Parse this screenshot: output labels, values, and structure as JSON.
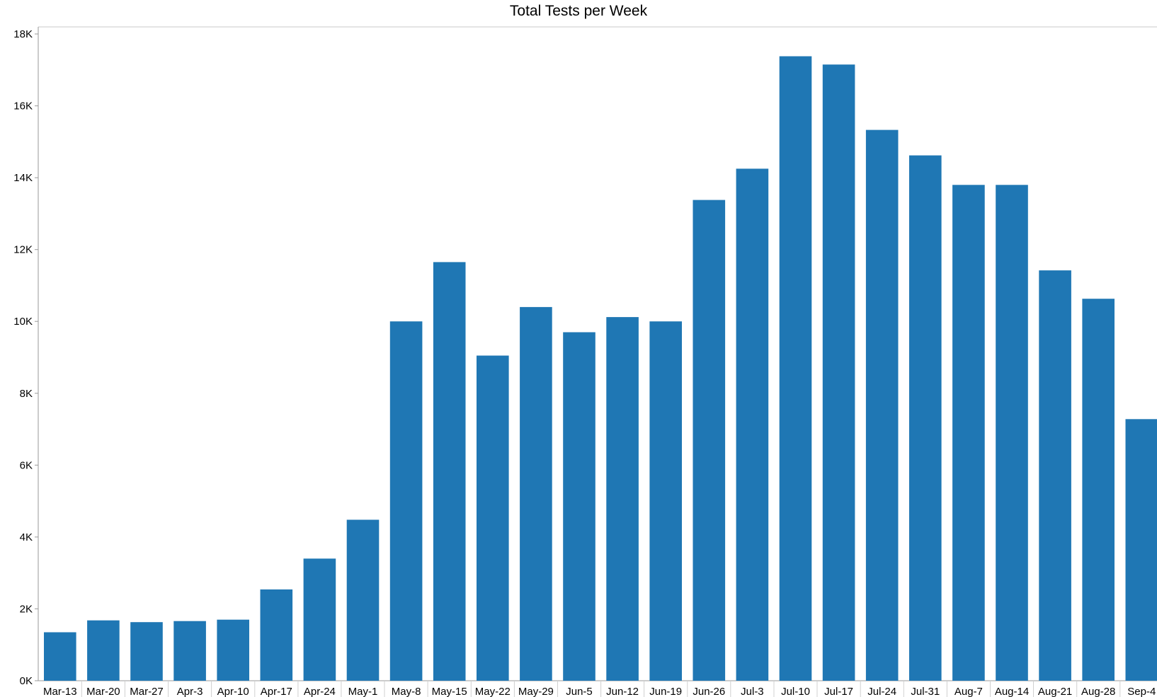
{
  "chart_data": {
    "type": "bar",
    "title": "Total Tests per Week",
    "xlabel": "",
    "ylabel": "",
    "categories": [
      "Mar-13",
      "Mar-20",
      "Mar-27",
      "Apr-3",
      "Apr-10",
      "Apr-17",
      "Apr-24",
      "May-1",
      "May-8",
      "May-15",
      "May-22",
      "May-29",
      "Jun-5",
      "Jun-12",
      "Jun-19",
      "Jun-26",
      "Jul-3",
      "Jul-10",
      "Jul-17",
      "Jul-24",
      "Jul-31",
      "Aug-7",
      "Aug-14",
      "Aug-21",
      "Aug-28",
      "Sep-4"
    ],
    "values": [
      1350,
      1680,
      1630,
      1660,
      1700,
      2540,
      3400,
      4480,
      10000,
      11650,
      9050,
      10400,
      9700,
      10120,
      10000,
      13380,
      14250,
      17380,
      17150,
      15330,
      14620,
      13800,
      13800,
      11420,
      10630,
      7280
    ],
    "ylim": [
      0,
      18000
    ],
    "yticks": [
      0,
      2000,
      4000,
      6000,
      8000,
      10000,
      12000,
      14000,
      16000,
      18000
    ],
    "ytick_labels": [
      "0K",
      "2K",
      "4K",
      "6K",
      "8K",
      "10K",
      "12K",
      "14K",
      "16K",
      "18K"
    ],
    "grid": false,
    "legend": "none",
    "bar_color": "#1f77b4"
  }
}
